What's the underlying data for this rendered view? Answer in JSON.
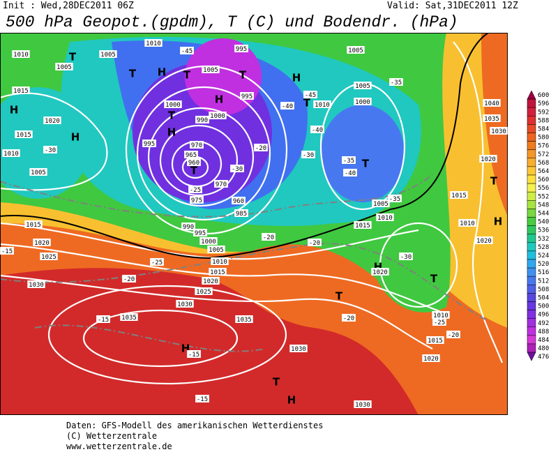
{
  "header": {
    "init": "Init : Wed,28DEC2011 06Z",
    "valid": "Valid: Sat,31DEC2011 12Z",
    "title": "500 hPa Geopot.(gpdm), T (C) und Bodendr. (hPa)"
  },
  "legend": {
    "levels": [
      600,
      596,
      592,
      588,
      584,
      580,
      576,
      572,
      568,
      564,
      560,
      556,
      552,
      548,
      544,
      540,
      536,
      532,
      528,
      524,
      520,
      516,
      512,
      508,
      504,
      500,
      496,
      492,
      488,
      484,
      480,
      476
    ],
    "colors": [
      "#9c0040",
      "#c0143c",
      "#d2203c",
      "#e03030",
      "#e84a28",
      "#ee6420",
      "#f07c20",
      "#f49628",
      "#f8ae30",
      "#fcc838",
      "#fce040",
      "#f4f050",
      "#d0ec48",
      "#a8e440",
      "#78d840",
      "#48cc40",
      "#30c860",
      "#20c890",
      "#20c8c0",
      "#20c0e0",
      "#30a8f0",
      "#4090f0",
      "#4878f0",
      "#5060e8",
      "#5848e0",
      "#6838e0",
      "#8030e0",
      "#a030e0",
      "#c030e0",
      "#d838d8",
      "#b020b8",
      "#7010a0"
    ]
  },
  "map_labels": [
    "1010",
    "1005",
    "T",
    "1015",
    "H",
    "1015",
    "1010",
    "H",
    "1020",
    "-30",
    "1005",
    "1015",
    "1020",
    "1025",
    "1030",
    "-15",
    "-20",
    "-25",
    "1010",
    "1015",
    "1020",
    "1025",
    "1030",
    "1035",
    "-15",
    "H",
    "-15",
    "1035",
    "1030",
    "T",
    "H",
    "-15",
    "1030",
    "1020",
    "1015",
    "1010",
    "-25",
    "-20",
    "T",
    "-20",
    "H",
    "1020",
    "-30",
    "T",
    "1020",
    "H",
    "1010",
    "T",
    "1015",
    "1020",
    "1030",
    "1035",
    "1040",
    "-35",
    "1005",
    "1005",
    "1000",
    "T",
    "-35",
    "-40",
    "1005",
    "1010",
    "1015",
    "-35",
    "H",
    "T",
    "1010",
    "-40",
    "-45",
    "-40",
    "-30",
    "T",
    "1005",
    "995",
    "1010",
    "1005",
    "-45",
    "T",
    "H",
    "T",
    "1000",
    "T",
    "H",
    "1000",
    "995",
    "990",
    "H",
    "995",
    "970",
    "965",
    "960",
    "T",
    "-25",
    "975",
    "970",
    "960",
    "985",
    "-30",
    "-20",
    "990",
    "995",
    "1000",
    "1005",
    "-20",
    "-20"
  ],
  "footer": {
    "line1": "Daten: GFS-Modell des amerikanischen Wetterdienstes",
    "line2": "(C) Wetterzentrale",
    "line3": "www.wetterzentrale.de"
  }
}
